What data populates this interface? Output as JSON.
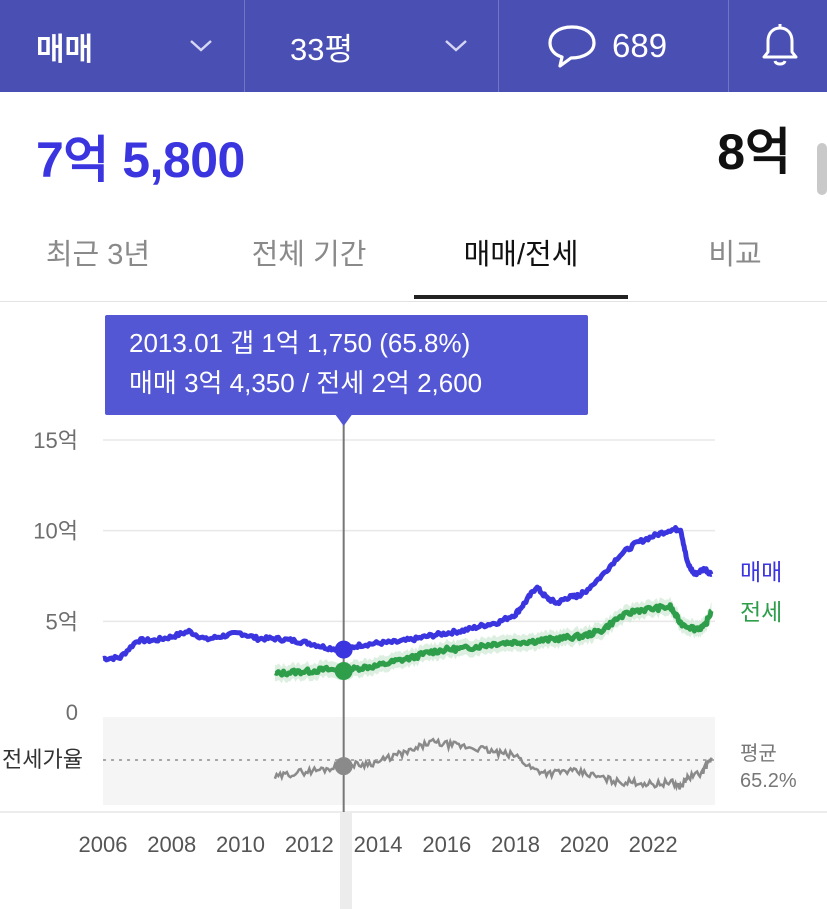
{
  "topbar": {
    "trade_type": "매매",
    "area": "33평",
    "comment_count": "689",
    "icons": {
      "chevron": "chevron-down-icon",
      "comment": "speech-bubble-icon",
      "bell": "bell-icon"
    }
  },
  "price": {
    "current": "7억 5,800",
    "right_value": "8억"
  },
  "tabs": [
    {
      "label": "최근 3년",
      "active": false
    },
    {
      "label": "전체 기간",
      "active": false
    },
    {
      "label": "매매/전세",
      "active": true
    },
    {
      "label": "비교",
      "active": false
    }
  ],
  "tooltip": {
    "line1": "2013.01  갭 1억 1,750 (65.8%)",
    "line2": "매매 3억 4,350 / 전세 2억 2,600"
  },
  "ratio_panel": {
    "label": "전세가율",
    "avg_label": "평균",
    "avg_value": "65.2%"
  },
  "colors": {
    "topbar": "#4a4fb3",
    "sale": "#3b35e0",
    "jeonse": "#2e9e4a",
    "ratio": "#8a8a8a",
    "tooltip": "#5357d4"
  },
  "chart_data": [
    {
      "type": "line",
      "x_unit": "year",
      "ylabel_unit": "억",
      "y_tick_labels": [
        "0",
        "5억",
        "10억",
        "15억"
      ],
      "x_tick_labels": [
        "2006",
        "2008",
        "2010",
        "2012",
        "2014",
        "2016",
        "2018",
        "2020",
        "2022"
      ],
      "ylim": [
        0,
        15
      ],
      "xlim": [
        2006,
        2023.8
      ],
      "grid": true,
      "series": [
        {
          "name": "매매",
          "points": [
            [
              2006.0,
              2.95
            ],
            [
              2006.5,
              3.0
            ],
            [
              2007.0,
              3.95
            ],
            [
              2007.5,
              3.95
            ],
            [
              2008.0,
              4.15
            ],
            [
              2008.5,
              4.45
            ],
            [
              2009.0,
              4.0
            ],
            [
              2009.5,
              4.2
            ],
            [
              2010.0,
              4.35
            ],
            [
              2010.5,
              4.05
            ],
            [
              2011.0,
              4.05
            ],
            [
              2011.5,
              3.95
            ],
            [
              2012.0,
              3.8
            ],
            [
              2012.5,
              3.55
            ],
            [
              2013.0,
              3.44
            ],
            [
              2013.5,
              3.7
            ],
            [
              2014.0,
              3.8
            ],
            [
              2014.5,
              3.85
            ],
            [
              2015.0,
              4.0
            ],
            [
              2015.5,
              4.2
            ],
            [
              2016.0,
              4.35
            ],
            [
              2016.5,
              4.5
            ],
            [
              2017.0,
              4.75
            ],
            [
              2017.5,
              4.95
            ],
            [
              2018.0,
              5.4
            ],
            [
              2018.3,
              6.1
            ],
            [
              2018.6,
              6.9
            ],
            [
              2018.9,
              6.3
            ],
            [
              2019.2,
              6.0
            ],
            [
              2019.5,
              6.3
            ],
            [
              2019.8,
              6.4
            ],
            [
              2020.0,
              6.6
            ],
            [
              2020.5,
              7.5
            ],
            [
              2021.0,
              8.6
            ],
            [
              2021.5,
              9.3
            ],
            [
              2022.0,
              9.7
            ],
            [
              2022.5,
              10.05
            ],
            [
              2022.8,
              10.1
            ],
            [
              2023.0,
              8.2
            ],
            [
              2023.2,
              7.6
            ],
            [
              2023.5,
              7.9
            ],
            [
              2023.7,
              7.6
            ]
          ]
        },
        {
          "name": "전세",
          "points": [
            [
              2011.0,
              2.1
            ],
            [
              2011.5,
              2.2
            ],
            [
              2012.0,
              2.25
            ],
            [
              2012.5,
              2.35
            ],
            [
              2013.0,
              2.26
            ],
            [
              2013.5,
              2.45
            ],
            [
              2014.0,
              2.55
            ],
            [
              2014.5,
              2.8
            ],
            [
              2015.0,
              3.0
            ],
            [
              2015.5,
              3.3
            ],
            [
              2016.0,
              3.45
            ],
            [
              2016.5,
              3.5
            ],
            [
              2017.0,
              3.65
            ],
            [
              2017.5,
              3.8
            ],
            [
              2018.0,
              3.85
            ],
            [
              2018.5,
              3.9
            ],
            [
              2019.0,
              4.0
            ],
            [
              2019.5,
              4.1
            ],
            [
              2020.0,
              4.2
            ],
            [
              2020.5,
              4.5
            ],
            [
              2021.0,
              5.2
            ],
            [
              2021.5,
              5.6
            ],
            [
              2022.0,
              5.7
            ],
            [
              2022.5,
              5.8
            ],
            [
              2022.8,
              4.9
            ],
            [
              2023.2,
              4.6
            ],
            [
              2023.5,
              4.7
            ],
            [
              2023.7,
              5.6
            ]
          ]
        }
      ],
      "cursor": {
        "x": 2013.0,
        "sale": 3.44,
        "jeonse": 2.26
      },
      "series_labels": [
        "매매",
        "전세"
      ]
    },
    {
      "type": "line",
      "name": "전세가율",
      "average_percent": 65.2,
      "points_percent": [
        [
          2011.0,
          60
        ],
        [
          2011.5,
          62
        ],
        [
          2012.0,
          63
        ],
        [
          2012.5,
          64
        ],
        [
          2013.0,
          65.8
        ],
        [
          2013.5,
          66
        ],
        [
          2014.0,
          67
        ],
        [
          2014.5,
          70
        ],
        [
          2015.0,
          72
        ],
        [
          2015.5,
          76
        ],
        [
          2016.0,
          75
        ],
        [
          2016.5,
          74
        ],
        [
          2017.0,
          73
        ],
        [
          2017.5,
          71
        ],
        [
          2018.0,
          70
        ],
        [
          2018.5,
          64
        ],
        [
          2019.0,
          62
        ],
        [
          2019.5,
          63
        ],
        [
          2020.0,
          62
        ],
        [
          2020.5,
          60
        ],
        [
          2021.0,
          58
        ],
        [
          2021.5,
          58
        ],
        [
          2022.0,
          57
        ],
        [
          2022.5,
          58
        ],
        [
          2022.8,
          56
        ],
        [
          2023.0,
          60
        ],
        [
          2023.4,
          62
        ],
        [
          2023.7,
          69
        ]
      ],
      "ylim_percent": [
        50,
        85
      ]
    }
  ]
}
